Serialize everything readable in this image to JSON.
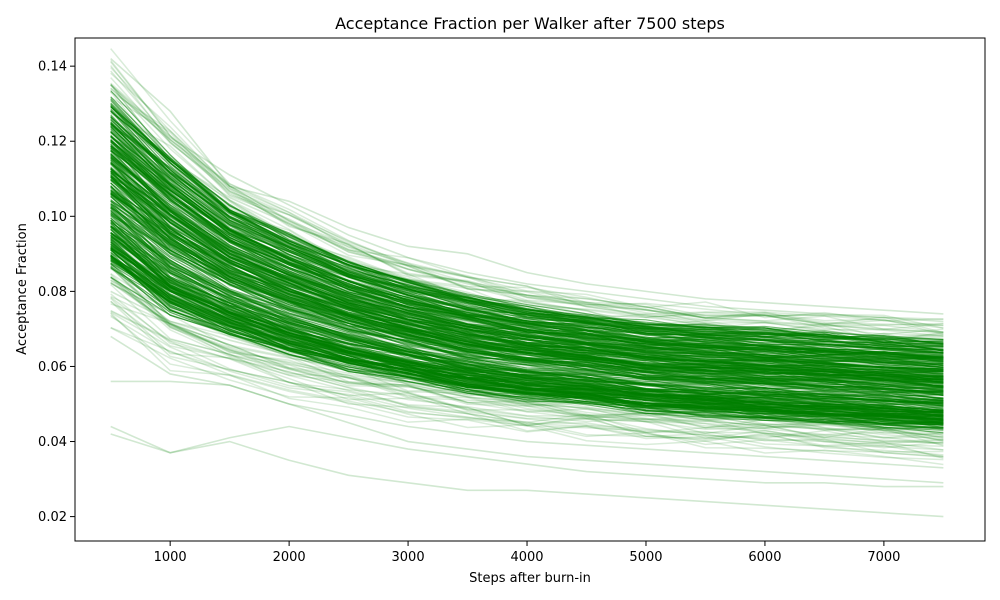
{
  "chart_data": {
    "type": "line",
    "title": "Acceptance Fraction per Walker after 7500 steps",
    "xlabel": "Steps after burn-in",
    "ylabel": "Acceptance Fraction",
    "xlim": [
      200,
      7850
    ],
    "ylim": [
      0.0135,
      0.1475
    ],
    "x_ticks": [
      1000,
      2000,
      3000,
      4000,
      5000,
      6000,
      7000
    ],
    "y_ticks": [
      0.02,
      0.04,
      0.06,
      0.08,
      0.1,
      0.12,
      0.14
    ],
    "y_tick_labels": [
      "0.02",
      "0.04",
      "0.06",
      "0.08",
      "0.10",
      "0.12",
      "0.14"
    ],
    "grid": false,
    "legend": "none",
    "series_color": "#008000",
    "series_opacity": 0.15,
    "x": [
      500,
      1000,
      1500,
      2000,
      2500,
      3000,
      3500,
      4000,
      4500,
      5000,
      5500,
      6000,
      6500,
      7000,
      7500
    ],
    "representative_series": [
      {
        "values": [
          0.142,
          0.128,
          0.108,
          0.104,
          0.097,
          0.092,
          0.09,
          0.085,
          0.082,
          0.08,
          0.078,
          0.077,
          0.076,
          0.075,
          0.074
        ]
      },
      {
        "values": [
          0.135,
          0.121,
          0.111,
          0.103,
          0.095,
          0.089,
          0.085,
          0.082,
          0.08,
          0.078,
          0.076,
          0.075,
          0.074,
          0.073,
          0.072
        ]
      },
      {
        "values": [
          0.128,
          0.115,
          0.105,
          0.098,
          0.091,
          0.086,
          0.082,
          0.079,
          0.077,
          0.075,
          0.073,
          0.072,
          0.071,
          0.07,
          0.069
        ]
      },
      {
        "values": [
          0.12,
          0.108,
          0.098,
          0.091,
          0.085,
          0.081,
          0.077,
          0.074,
          0.072,
          0.07,
          0.068,
          0.067,
          0.066,
          0.065,
          0.064
        ]
      },
      {
        "values": [
          0.11,
          0.1,
          0.091,
          0.085,
          0.08,
          0.076,
          0.072,
          0.07,
          0.068,
          0.066,
          0.064,
          0.063,
          0.062,
          0.061,
          0.06
        ]
      },
      {
        "values": [
          0.1,
          0.092,
          0.084,
          0.078,
          0.073,
          0.07,
          0.067,
          0.065,
          0.063,
          0.061,
          0.06,
          0.059,
          0.058,
          0.057,
          0.056
        ]
      },
      {
        "values": [
          0.09,
          0.083,
          0.076,
          0.071,
          0.067,
          0.064,
          0.061,
          0.059,
          0.058,
          0.056,
          0.055,
          0.054,
          0.053,
          0.052,
          0.051
        ]
      },
      {
        "values": [
          0.08,
          0.072,
          0.067,
          0.063,
          0.06,
          0.057,
          0.055,
          0.053,
          0.052,
          0.05,
          0.049,
          0.048,
          0.047,
          0.046,
          0.045
        ]
      },
      {
        "values": [
          0.068,
          0.058,
          0.055,
          0.05,
          0.047,
          0.044,
          0.042,
          0.04,
          0.039,
          0.038,
          0.037,
          0.036,
          0.035,
          0.034,
          0.033
        ]
      },
      {
        "values": [
          0.056,
          0.056,
          0.055,
          0.05,
          0.045,
          0.04,
          0.038,
          0.036,
          0.035,
          0.034,
          0.033,
          0.032,
          0.031,
          0.03,
          0.029
        ]
      },
      {
        "values": [
          0.044,
          0.037,
          0.041,
          0.044,
          0.041,
          0.038,
          0.036,
          0.034,
          0.032,
          0.031,
          0.03,
          0.029,
          0.029,
          0.028,
          0.028
        ]
      },
      {
        "values": [
          0.042,
          0.037,
          0.04,
          0.035,
          0.031,
          0.029,
          0.027,
          0.027,
          0.026,
          0.025,
          0.024,
          0.023,
          0.022,
          0.021,
          0.02
        ]
      }
    ],
    "band": {
      "lower": [
        0.086,
        0.074,
        0.068,
        0.063,
        0.059,
        0.056,
        0.053,
        0.051,
        0.05,
        0.048,
        0.047,
        0.046,
        0.045,
        0.044,
        0.043
      ],
      "upper": [
        0.131,
        0.116,
        0.103,
        0.095,
        0.088,
        0.083,
        0.079,
        0.076,
        0.074,
        0.072,
        0.071,
        0.07,
        0.069,
        0.068,
        0.067
      ]
    }
  }
}
